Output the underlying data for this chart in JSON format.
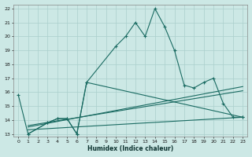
{
  "xlabel": "Humidex (Indice chaleur)",
  "xlim": [
    -0.5,
    23.5
  ],
  "ylim": [
    12.8,
    22.3
  ],
  "yticks": [
    13,
    14,
    15,
    16,
    17,
    18,
    19,
    20,
    21,
    22
  ],
  "xticks": [
    0,
    1,
    2,
    3,
    4,
    5,
    6,
    7,
    8,
    9,
    10,
    11,
    12,
    13,
    14,
    15,
    16,
    17,
    18,
    19,
    20,
    21,
    22,
    23
  ],
  "background_color": "#cce8e5",
  "grid_color": "#aacfcc",
  "line_color": "#1a6b62",
  "line1_x": [
    1,
    3,
    4,
    5,
    6,
    7,
    10,
    11,
    12,
    13,
    14,
    15,
    16,
    17,
    18,
    19,
    20,
    21,
    22,
    23
  ],
  "line1_y": [
    13,
    13.8,
    14.1,
    14.1,
    13,
    16.7,
    19.3,
    20,
    21,
    20,
    22,
    20.7,
    19,
    16.5,
    16.3,
    16.7,
    17,
    15.2,
    14.2,
    14.2
  ],
  "line2_x": [
    0,
    1,
    3,
    4,
    5,
    6,
    7,
    23
  ],
  "line2_y": [
    15.8,
    13,
    13.8,
    14.1,
    14.1,
    13,
    16.7,
    14.2
  ],
  "line3_x": [
    1,
    23
  ],
  "line3_y": [
    13.3,
    14.2
  ],
  "line4_x": [
    1,
    23
  ],
  "line4_y": [
    13.5,
    16.4
  ],
  "line5_x": [
    1,
    23
  ],
  "line5_y": [
    13.6,
    16.1
  ]
}
